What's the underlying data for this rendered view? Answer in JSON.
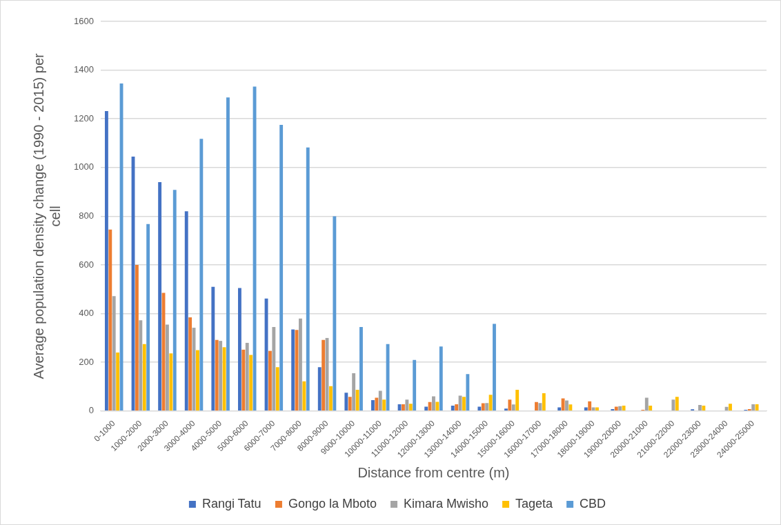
{
  "chart_data": {
    "type": "bar",
    "xlabel": "Distance from centre (m)",
    "ylabel": "Average population density change (1990 - 2015) per cell",
    "categories": [
      "0-1000",
      "1000-2000",
      "2000-3000",
      "3000-4000",
      "4000-5000",
      "5000-6000",
      "6000-7000",
      "7000-8000",
      "8000-9000",
      "9000-10000",
      "10000-11000",
      "11000-12000",
      "12000-13000",
      "13000-14000",
      "14000-15000",
      "15000-16000",
      "16000-17000",
      "17000-18000",
      "18000-19000",
      "19000-20000",
      "20000-21000",
      "21000-22000",
      "22000-23000",
      "23000-24000",
      "24000-25000"
    ],
    "series": [
      {
        "name": "Rangi Tatu",
        "color": "#4472c4",
        "values": [
          1232,
          1045,
          940,
          820,
          510,
          505,
          462,
          335,
          180,
          75,
          45,
          28,
          18,
          22,
          18,
          10,
          null,
          15,
          15,
          8,
          null,
          null,
          7,
          null,
          5
        ]
      },
      {
        "name": "Gongo la Mboto",
        "color": "#ed7d31",
        "values": [
          745,
          600,
          485,
          385,
          292,
          252,
          247,
          333,
          292,
          58,
          55,
          28,
          37,
          28,
          32,
          47,
          37,
          52,
          40,
          18,
          5,
          null,
          null,
          null,
          8
        ]
      },
      {
        "name": "Kimara Mwisho",
        "color": "#a5a5a5",
        "values": [
          472,
          373,
          355,
          342,
          288,
          280,
          345,
          380,
          300,
          155,
          83,
          47,
          60,
          63,
          33,
          27,
          33,
          43,
          15,
          20,
          55,
          47,
          25,
          17,
          28
        ]
      },
      {
        "name": "Tageta",
        "color": "#ffc000",
        "values": [
          240,
          275,
          237,
          250,
          262,
          230,
          180,
          122,
          102,
          87,
          47,
          30,
          38,
          58,
          67,
          87,
          73,
          27,
          15,
          22,
          22,
          58,
          22,
          30,
          28
        ]
      },
      {
        "name": "CBD",
        "color": "#5b9bd5",
        "values": [
          1345,
          768,
          908,
          1118,
          1288,
          1332,
          1175,
          1082,
          800,
          345,
          275,
          210,
          265,
          152,
          358,
          null,
          null,
          null,
          null,
          null,
          null,
          null,
          null,
          null,
          null
        ]
      }
    ],
    "ylim": [
      0,
      1600
    ],
    "yticks": [
      0,
      200,
      400,
      600,
      800,
      1000,
      1200,
      1400,
      1600
    ],
    "grid": "y",
    "legend": "bottom"
  }
}
